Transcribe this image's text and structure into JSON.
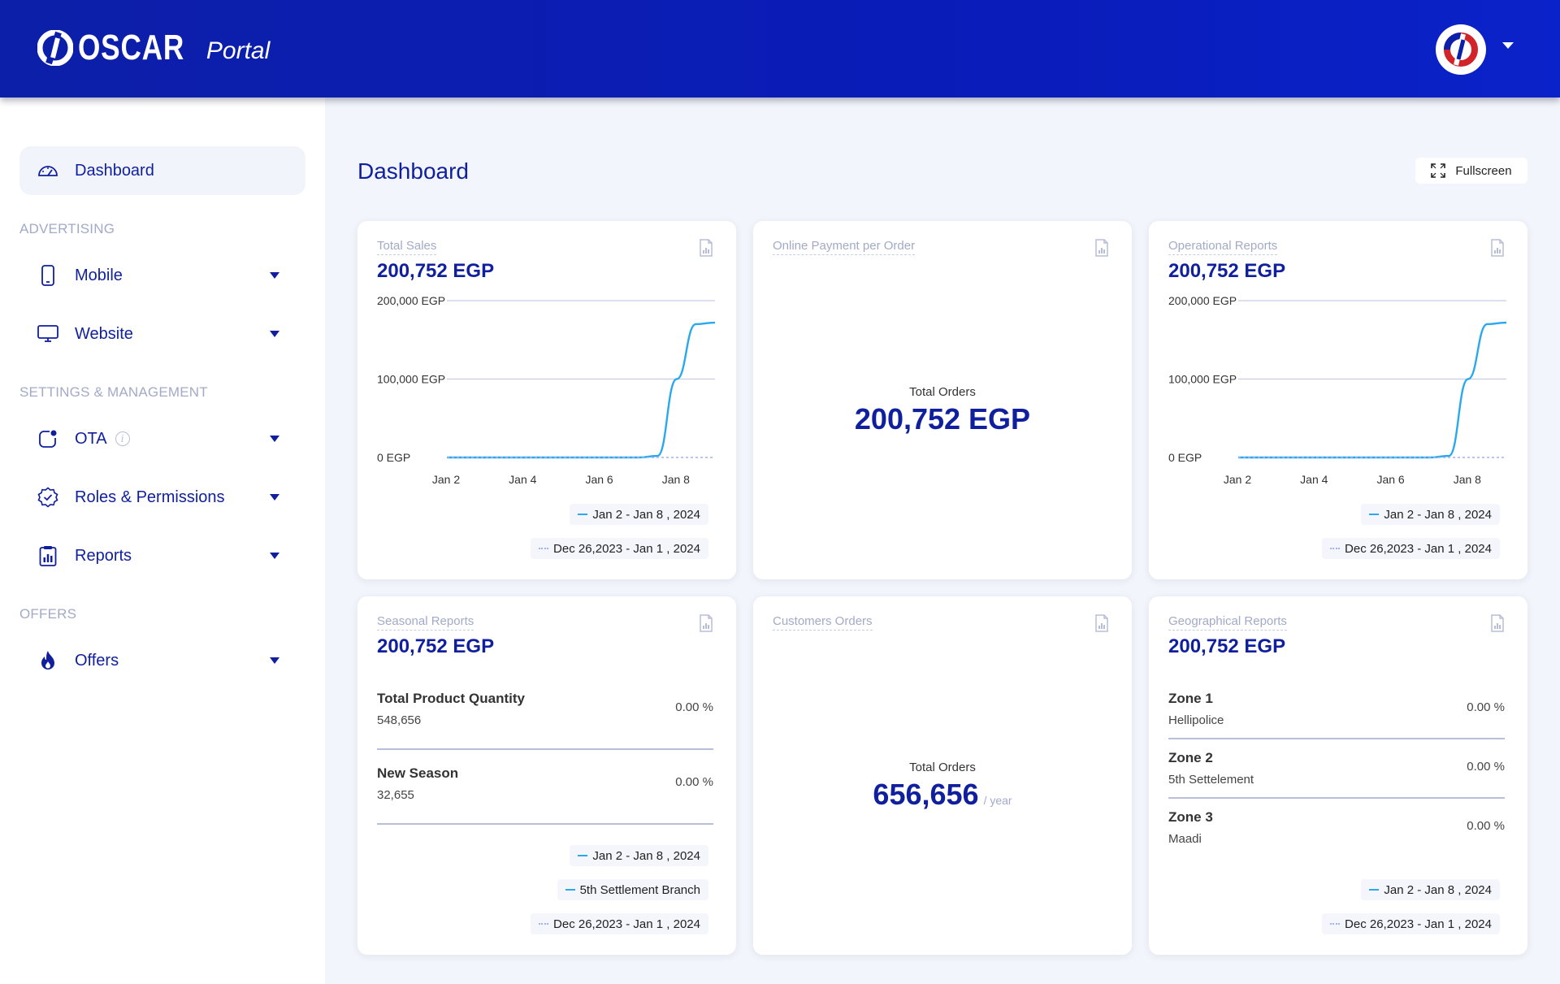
{
  "header": {
    "brand_name": "OSCAR",
    "brand_sub": "Portal"
  },
  "sidebar": {
    "active": {
      "label": "Dashboard",
      "icon": "dashboard-gauge-icon"
    },
    "sections": {
      "advertising": "ADVERTISING",
      "settings": "SETTINGS & MANAGEMENT",
      "offers": "OFFERS"
    },
    "items": {
      "mobile": {
        "label": "Mobile",
        "icon": "mobile-phone-icon"
      },
      "website": {
        "label": "Website",
        "icon": "monitor-icon"
      },
      "ota": {
        "label": "OTA",
        "icon": "ota-update-icon"
      },
      "roles": {
        "label": "Roles & Permissions",
        "icon": "verified-badge-icon"
      },
      "reports": {
        "label": "Reports",
        "icon": "clipboard-chart-icon"
      },
      "offers": {
        "label": "Offers",
        "icon": "fire-icon"
      }
    }
  },
  "main": {
    "title": "Dashboard",
    "fullscreen_label": "Fullscreen"
  },
  "legend": {
    "current": "Jan 2 - Jan 8 , 2024",
    "previous": "Dec 26,2023 - Jan 1 , 2024",
    "branch": "5th Settlement Branch"
  },
  "cards": {
    "total_sales": {
      "label": "Total Sales",
      "value": "200,752 EGP"
    },
    "online_payment": {
      "label": "Online Payment per Order",
      "center_label": "Total Orders",
      "center_value": "200,752 EGP"
    },
    "operational": {
      "label": "Operational Reports",
      "value": "200,752 EGP"
    },
    "seasonal": {
      "label": "Seasonal Reports",
      "value": "200,752 EGP",
      "rows": [
        {
          "title": "Total Product Quantity",
          "sub": "548,656",
          "pct": "0.00 %"
        },
        {
          "title": "New Season",
          "sub": "32,655",
          "pct": "0.00 %"
        }
      ]
    },
    "customers": {
      "label": "Customers Orders",
      "center_label": "Total Orders",
      "center_value": "656,656",
      "unit": "/ year"
    },
    "geographical": {
      "label": "Geographical Reports",
      "value": "200,752 EGP",
      "rows": [
        {
          "title": "Zone 1",
          "sub": "Hellipolice",
          "pct": "0.00 %"
        },
        {
          "title": "Zone 2",
          "sub": "5th Settelement",
          "pct": "0.00 %"
        },
        {
          "title": "Zone 3",
          "sub": "Maadi",
          "pct": "0.00 %"
        }
      ]
    }
  },
  "chart_data": [
    {
      "type": "line",
      "title": "Total Sales",
      "y_ticks": [
        "200,000 EGP",
        "100,000 EGP",
        "0 EGP"
      ],
      "ylim": [
        0,
        200000
      ],
      "x_ticks": [
        "Jan 2",
        "Jan 4",
        "Jan 6",
        "Jan 8"
      ],
      "x": [
        "Jan 2",
        "Jan 3",
        "Jan 4",
        "Jan 5",
        "Jan 6",
        "Jan 7",
        "Jan 7.5",
        "Jan 8",
        "Jan 8.5",
        "Jan 9"
      ],
      "series": [
        {
          "name": "Jan 2 - Jan 8 , 2024",
          "values": [
            0,
            0,
            0,
            0,
            0,
            0,
            2000,
            100000,
            170000,
            172000
          ],
          "color": "#29a8ee"
        },
        {
          "name": "Dec 26,2023 - Jan 1 , 2024",
          "values": [
            0,
            0,
            0,
            0,
            0,
            0,
            0,
            0,
            0,
            0
          ],
          "color": "#9fb4ee"
        }
      ],
      "grid": true
    },
    {
      "type": "line",
      "title": "Operational Reports",
      "y_ticks": [
        "200,000 EGP",
        "100,000 EGP",
        "0 EGP"
      ],
      "ylim": [
        0,
        200000
      ],
      "x_ticks": [
        "Jan 2",
        "Jan 4",
        "Jan 6",
        "Jan 8"
      ],
      "x": [
        "Jan 2",
        "Jan 3",
        "Jan 4",
        "Jan 5",
        "Jan 6",
        "Jan 7",
        "Jan 7.5",
        "Jan 8",
        "Jan 8.5",
        "Jan 9"
      ],
      "series": [
        {
          "name": "Jan 2 - Jan 8 , 2024",
          "values": [
            0,
            0,
            0,
            0,
            0,
            0,
            2000,
            100000,
            170000,
            172000
          ],
          "color": "#29a8ee"
        },
        {
          "name": "Dec 26,2023 - Jan 1 , 2024",
          "values": [
            0,
            0,
            0,
            0,
            0,
            0,
            0,
            0,
            0,
            0
          ],
          "color": "#9fb4ee"
        }
      ],
      "grid": true
    }
  ],
  "colors": {
    "primary": "#0f1f9e",
    "header": "#0c1fa8",
    "line": "#29a8ee",
    "muted": "#a2aac8",
    "logo_red": "#d2232a"
  }
}
